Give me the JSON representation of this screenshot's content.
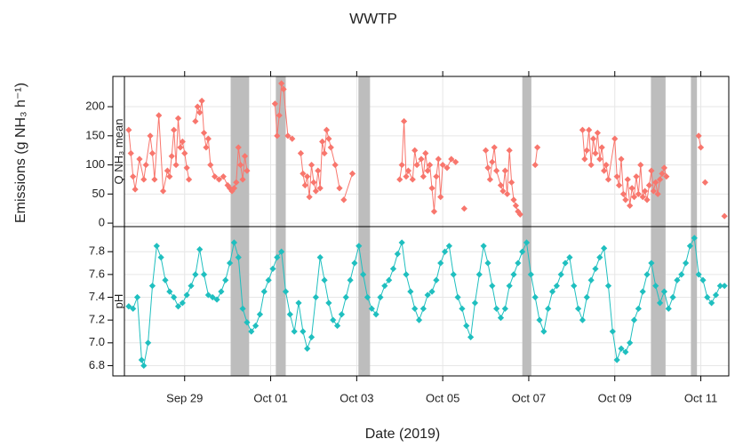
{
  "chart_data": {
    "type": "line",
    "title": "WWTP",
    "xlabel": "Date (2019)",
    "ylabel": "Emissions (g NH₃ h⁻¹)",
    "xlim": [
      27.6,
      41.65
    ],
    "xticks": [
      {
        "value": 29,
        "label": "Sep 29"
      },
      {
        "value": 31,
        "label": "Oct 01"
      },
      {
        "value": 33,
        "label": "Oct 03"
      },
      {
        "value": 35,
        "label": "Oct 05"
      },
      {
        "value": 37,
        "label": "Oct 07"
      },
      {
        "value": 39,
        "label": "Oct 09"
      },
      {
        "value": 41,
        "label": "Oct 11"
      }
    ],
    "grid": true,
    "shaded": [
      [
        30.07,
        30.5
      ],
      [
        31.12,
        31.35
      ],
      [
        33.04,
        33.31
      ],
      [
        36.85,
        37.06
      ],
      [
        39.84,
        40.18
      ],
      [
        40.77,
        40.91
      ]
    ],
    "shade_color": "#bdbdbd",
    "panels": [
      {
        "strip": "Q NH₃ mean",
        "color": "#f8766d",
        "ylim": [
          -6,
          252
        ],
        "yticks": [
          0,
          50,
          100,
          150,
          200
        ],
        "x": [
          27.7,
          27.75,
          27.8,
          27.85,
          27.95,
          28.05,
          28.1,
          28.2,
          28.25,
          28.3,
          28.4,
          28.5,
          28.6,
          28.65,
          28.7,
          28.75,
          28.8,
          28.85,
          28.9,
          28.95,
          29.0,
          29.05,
          29.1,
          29.15,
          29.25,
          29.3,
          29.35,
          29.4,
          29.45,
          29.5,
          29.55,
          29.6,
          29.7,
          29.8,
          29.9,
          30.0,
          30.05,
          30.1,
          30.15,
          30.2,
          30.25,
          30.3,
          30.35,
          30.4,
          30.45,
          30.7,
          31.1,
          31.15,
          31.2,
          31.25,
          31.3,
          31.4,
          31.5,
          31.6,
          31.7,
          31.75,
          31.8,
          31.85,
          31.9,
          31.95,
          32.0,
          32.05,
          32.1,
          32.15,
          32.2,
          32.25,
          32.3,
          32.35,
          32.4,
          32.5,
          32.6,
          32.65,
          32.7,
          32.9,
          33.2,
          34.0,
          34.05,
          34.1,
          34.15,
          34.2,
          34.3,
          34.35,
          34.4,
          34.5,
          34.55,
          34.6,
          34.65,
          34.7,
          34.75,
          34.8,
          34.85,
          34.9,
          34.95,
          35.0,
          35.1,
          35.2,
          35.3,
          35.4,
          35.5,
          35.55,
          36.0,
          36.05,
          36.1,
          36.15,
          36.2,
          36.25,
          36.35,
          36.4,
          36.45,
          36.5,
          36.55,
          36.6,
          36.65,
          36.7,
          36.75,
          36.8,
          36.9,
          37.15,
          37.2,
          37.5,
          38.25,
          38.3,
          38.35,
          38.4,
          38.45,
          38.5,
          38.55,
          38.6,
          38.65,
          38.7,
          38.75,
          38.8,
          38.85,
          39.0,
          39.05,
          39.1,
          39.15,
          39.2,
          39.25,
          39.3,
          39.35,
          39.4,
          39.45,
          39.5,
          39.55,
          39.6,
          39.65,
          39.7,
          39.75,
          39.8,
          39.85,
          39.9,
          39.95,
          40.0,
          40.05,
          40.1,
          40.15,
          40.2,
          40.4,
          40.95,
          41.0,
          41.05,
          41.1,
          41.2,
          41.55
        ],
        "values": [
          160,
          120,
          80,
          58,
          110,
          75,
          100,
          150,
          120,
          75,
          185,
          55,
          90,
          80,
          115,
          160,
          100,
          180,
          130,
          140,
          120,
          95,
          75,
          null,
          175,
          200,
          190,
          210,
          155,
          130,
          145,
          100,
          80,
          75,
          80,
          65,
          60,
          55,
          60,
          70,
          130,
          100,
          75,
          115,
          90,
          null,
          205,
          150,
          185,
          240,
          230,
          150,
          145,
          null,
          120,
          85,
          65,
          80,
          45,
          100,
          70,
          55,
          90,
          60,
          140,
          120,
          160,
          145,
          130,
          100,
          60,
          null,
          40,
          85,
          null,
          75,
          100,
          175,
          80,
          90,
          75,
          125,
          100,
          110,
          80,
          120,
          90,
          100,
          60,
          20,
          80,
          110,
          45,
          100,
          95,
          110,
          105,
          null,
          25,
          null,
          125,
          95,
          75,
          105,
          130,
          90,
          65,
          55,
          90,
          50,
          125,
          70,
          40,
          30,
          20,
          15,
          null,
          100,
          130,
          null,
          160,
          110,
          125,
          160,
          100,
          145,
          120,
          155,
          110,
          130,
          90,
          100,
          75,
          145,
          80,
          65,
          110,
          50,
          40,
          75,
          30,
          60,
          45,
          80,
          50,
          100,
          45,
          55,
          40,
          65,
          90,
          55,
          70,
          50,
          75,
          85,
          95,
          80,
          null,
          150,
          130,
          null,
          70,
          null,
          12
        ]
      },
      {
        "strip": "pH",
        "color": "#1fbfbf",
        "ylim": [
          6.71,
          8.02
        ],
        "yticks": [
          6.8,
          {
            "value": 7,
            "label": "7.0"
          },
          7.2,
          7.4,
          7.6,
          7.8
        ],
        "x": [
          27.7,
          27.8,
          27.9,
          28.0,
          28.05,
          28.15,
          28.25,
          28.35,
          28.45,
          28.55,
          28.65,
          28.75,
          28.85,
          28.95,
          29.05,
          29.15,
          29.25,
          29.35,
          29.45,
          29.55,
          29.65,
          29.75,
          29.85,
          29.95,
          30.05,
          30.15,
          30.25,
          30.35,
          30.45,
          30.55,
          30.65,
          30.75,
          30.85,
          30.95,
          31.05,
          31.15,
          31.25,
          31.35,
          31.45,
          31.55,
          31.65,
          31.75,
          31.85,
          31.95,
          32.05,
          32.15,
          32.25,
          32.35,
          32.45,
          32.55,
          32.65,
          32.75,
          32.85,
          32.95,
          33.05,
          33.15,
          33.25,
          33.35,
          33.45,
          33.55,
          33.65,
          33.75,
          33.85,
          33.95,
          34.05,
          34.15,
          34.25,
          34.35,
          34.45,
          34.55,
          34.65,
          34.75,
          34.85,
          34.95,
          35.05,
          35.15,
          35.25,
          35.35,
          35.45,
          35.55,
          35.65,
          35.75,
          35.85,
          35.95,
          36.05,
          36.15,
          36.25,
          36.35,
          36.45,
          36.55,
          36.65,
          36.75,
          36.85,
          36.95,
          37.05,
          37.15,
          37.25,
          37.35,
          37.45,
          37.55,
          37.65,
          37.75,
          37.85,
          37.95,
          38.05,
          38.15,
          38.25,
          38.35,
          38.45,
          38.55,
          38.65,
          38.75,
          38.85,
          38.95,
          39.05,
          39.15,
          39.25,
          39.35,
          39.45,
          39.55,
          39.65,
          39.75,
          39.85,
          39.95,
          40.05,
          40.15,
          40.25,
          40.35,
          40.45,
          40.55,
          40.65,
          40.75,
          40.85,
          40.95,
          41.05,
          41.15,
          41.25,
          41.35,
          41.45,
          41.55
        ],
        "values": [
          7.32,
          7.3,
          7.4,
          6.85,
          6.8,
          7.0,
          7.5,
          7.85,
          7.75,
          7.55,
          7.45,
          7.4,
          7.32,
          7.35,
          7.42,
          7.5,
          7.6,
          7.82,
          7.6,
          7.42,
          7.4,
          7.38,
          7.45,
          7.55,
          7.7,
          7.88,
          7.75,
          7.3,
          7.18,
          7.1,
          7.15,
          7.25,
          7.45,
          7.55,
          7.65,
          7.75,
          7.8,
          7.45,
          7.25,
          7.1,
          7.35,
          7.1,
          6.95,
          7.05,
          7.4,
          7.75,
          7.55,
          7.35,
          7.2,
          7.15,
          7.25,
          7.4,
          7.55,
          7.7,
          7.85,
          7.6,
          7.4,
          7.3,
          7.25,
          7.4,
          7.5,
          7.55,
          7.65,
          7.78,
          7.88,
          7.6,
          7.45,
          7.3,
          7.2,
          7.3,
          7.42,
          7.45,
          7.55,
          7.7,
          7.8,
          7.85,
          7.6,
          7.4,
          7.3,
          7.15,
          7.05,
          7.35,
          7.6,
          7.85,
          7.7,
          7.5,
          7.3,
          7.22,
          7.3,
          7.5,
          7.6,
          7.7,
          7.8,
          7.88,
          7.6,
          7.4,
          7.2,
          7.1,
          7.3,
          7.45,
          7.5,
          7.6,
          7.7,
          7.75,
          7.5,
          7.3,
          7.2,
          7.4,
          7.55,
          7.65,
          7.75,
          7.83,
          7.5,
          7.1,
          6.85,
          6.95,
          6.92,
          7.0,
          7.2,
          7.3,
          7.45,
          7.6,
          7.7,
          7.5,
          7.35,
          7.45,
          7.3,
          7.4,
          7.55,
          7.6,
          7.7,
          7.85,
          7.92,
          7.6,
          7.55,
          7.4,
          7.35,
          7.42,
          7.5,
          7.5
        ]
      }
    ]
  }
}
